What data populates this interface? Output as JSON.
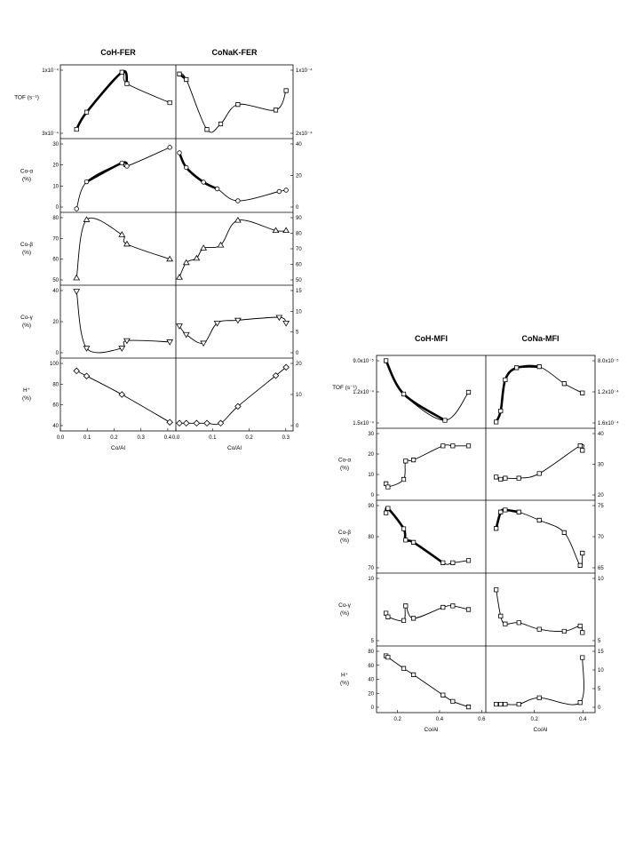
{
  "figures": [
    {
      "id": "fer",
      "x_label": "Co/Al",
      "panels": [
        {
          "title": "CoH-FER",
          "x_ticks": [
            "0.0",
            "0.1",
            "0.2",
            "0.3",
            "0.4"
          ]
        },
        {
          "title": "CoNaK-FER",
          "x_ticks": [
            "0.0",
            "0.1",
            "0.2",
            "0.3"
          ]
        }
      ],
      "rows": [
        {
          "label": [
            "TOF (s⁻¹)"
          ],
          "left_ticks": [
            "3x10⁻⁴",
            "1x10⁻⁴"
          ],
          "right_ticks": [
            "2x10⁻⁴",
            "1x10⁻⁴"
          ]
        },
        {
          "label": [
            "Co-α",
            "(%)"
          ],
          "left_ticks": [
            "0",
            "10",
            "20",
            "30"
          ],
          "right_ticks": [
            "0",
            "20",
            "40"
          ]
        },
        {
          "label": [
            "Co-β",
            "(%)"
          ],
          "left_ticks": [
            "50",
            "60",
            "70",
            "80"
          ],
          "right_ticks": [
            "50",
            "60",
            "70",
            "80",
            "90"
          ]
        },
        {
          "label": [
            "Co-γ",
            "(%)"
          ],
          "left_ticks": [
            "0",
            "20",
            "40"
          ],
          "right_ticks": [
            "0",
            "5",
            "10",
            "15"
          ]
        },
        {
          "label": [
            "H⁺",
            "(%)"
          ],
          "left_ticks": [
            "40",
            "60",
            "80",
            "100"
          ],
          "right_ticks": [
            "0",
            "10",
            "20"
          ]
        }
      ]
    },
    {
      "id": "mfi",
      "x_label": "Co/Al",
      "panels": [
        {
          "title": "CoH-MFI",
          "x_ticks": [
            "0.2",
            "0.4",
            "0.6"
          ]
        },
        {
          "title": "CoNa-MFI",
          "x_ticks": [
            "0.2",
            "0.4"
          ]
        }
      ],
      "rows": [
        {
          "label": [
            "TOF (s⁻¹)"
          ],
          "left_ticks": [
            "1.5x10⁻⁴",
            "1.2x10⁻⁴",
            "9.0x10⁻⁵"
          ],
          "right_ticks": [
            "1.6x10⁻⁴",
            "1.2x10⁻⁴",
            "8.0x10⁻⁵"
          ]
        },
        {
          "label": [
            "Co-α",
            "(%)"
          ],
          "left_ticks": [
            "0",
            "10",
            "20",
            "30"
          ],
          "right_ticks": [
            "20",
            "30",
            "40"
          ]
        },
        {
          "label": [
            "Co-β",
            "(%)"
          ],
          "left_ticks": [
            "70",
            "80",
            "90"
          ],
          "right_ticks": [
            "65",
            "70",
            "75"
          ]
        },
        {
          "label": [
            "Co-γ",
            "(%)"
          ],
          "left_ticks": [
            "5",
            "10"
          ],
          "right_ticks": [
            "5",
            "10"
          ]
        },
        {
          "label": [
            "H⁺",
            "(%)"
          ],
          "left_ticks": [
            "0",
            "20",
            "40",
            "60",
            "80"
          ],
          "right_ticks": [
            "0",
            "5",
            "10",
            "15"
          ]
        }
      ]
    }
  ],
  "chart_data": [
    {
      "type": "scatter",
      "title": "CoH-FER",
      "xlabel": "Co/Al",
      "xlim": [
        0,
        0.43
      ],
      "series": [
        {
          "name": "TOF (s⁻¹)",
          "marker": "square",
          "ylim": [
            0,
            0.00035
          ],
          "x": [
            0.05,
            0.09,
            0.23,
            0.25,
            0.42
          ],
          "y": [
            3e-05,
            0.00012,
            0.00033,
            0.00027,
            0.00017
          ]
        },
        {
          "name": "Co-α (%)",
          "marker": "circle",
          "ylim": [
            0,
            32
          ],
          "x": [
            0.05,
            0.09,
            0.23,
            0.25,
            0.42
          ],
          "y": [
            0,
            13,
            22,
            20.5,
            29.5
          ]
        },
        {
          "name": "Co-β (%)",
          "marker": "triangle",
          "ylim": [
            48,
            83
          ],
          "x": [
            0.05,
            0.09,
            0.23,
            0.25,
            0.42
          ],
          "y": [
            50,
            81,
            73,
            68,
            60
          ]
        },
        {
          "name": "Co-γ (%)",
          "marker": "triangle-down",
          "ylim": [
            0,
            52
          ],
          "x": [
            0.05,
            0.09,
            0.23,
            0.25,
            0.42
          ],
          "y": [
            50,
            5,
            5,
            11,
            10
          ]
        },
        {
          "name": "H⁺ (%)",
          "marker": "diamond",
          "ylim": [
            38,
            102
          ],
          "x": [
            0.05,
            0.09,
            0.23,
            0.42
          ],
          "y": [
            93,
            88,
            70,
            43
          ]
        }
      ]
    },
    {
      "type": "scatter",
      "title": "CoNaK-FER",
      "xlabel": "Co/Al",
      "xlim": [
        0,
        0.32
      ],
      "series": [
        {
          "name": "TOF (s⁻¹)",
          "marker": "square",
          "ylim": [
            4e-05,
            0.00028
          ],
          "x": [
            0.0,
            0.02,
            0.08,
            0.12,
            0.17,
            0.28,
            0.31
          ],
          "y": [
            0.00026,
            0.00024,
            6e-05,
            8e-05,
            0.00015,
            0.00013,
            0.0002
          ]
        },
        {
          "name": "Co-α (%)",
          "marker": "circle",
          "ylim": [
            0,
            50
          ],
          "x": [
            0.0,
            0.02,
            0.07,
            0.11,
            0.17,
            0.29,
            0.31
          ],
          "y": [
            42,
            31,
            20,
            15,
            6,
            13,
            14
          ]
        },
        {
          "name": "Co-β (%)",
          "marker": "triangle",
          "ylim": [
            47,
            92
          ],
          "x": [
            0.0,
            0.02,
            0.05,
            0.07,
            0.12,
            0.17,
            0.28,
            0.31
          ],
          "y": [
            50,
            60,
            63,
            70,
            72,
            89,
            82,
            82
          ]
        },
        {
          "name": "Co-γ (%)",
          "marker": "triangle-down",
          "ylim": [
            -3,
            20
          ],
          "x": [
            0.0,
            0.02,
            0.07,
            0.11,
            0.17,
            0.29,
            0.31
          ],
          "y": [
            7,
            4,
            1,
            8,
            9,
            10,
            8
          ]
        },
        {
          "name": "H⁺ (%)",
          "marker": "diamond",
          "ylim": [
            -1.5,
            22
          ],
          "x": [
            0.0,
            0.02,
            0.05,
            0.08,
            0.12,
            0.17,
            0.28,
            0.31
          ],
          "y": [
            0,
            0,
            0,
            0,
            0,
            6,
            17,
            20
          ]
        }
      ]
    },
    {
      "type": "scatter",
      "title": "CoH-MFI",
      "xlabel": "Co/Al",
      "xlim": [
        0.1,
        0.62
      ],
      "series": [
        {
          "name": "TOF (s⁻¹)",
          "marker": "square",
          "ylim": [
            8.5e-05,
            0.00016
          ],
          "x": [
            0.13,
            0.22,
            0.43,
            0.55
          ],
          "y": [
            0.000158,
            0.00012,
            9e-05,
            0.000122
          ]
        },
        {
          "name": "Co-α (%)",
          "marker": "square",
          "ylim": [
            0,
            30
          ],
          "x": [
            0.13,
            0.14,
            0.22,
            0.23,
            0.27,
            0.42,
            0.47,
            0.55
          ],
          "y": [
            6,
            4.5,
            8,
            16.5,
            17,
            23.5,
            23.5,
            23.5
          ]
        },
        {
          "name": "Co-β (%)",
          "marker": "square",
          "ylim": [
            68,
            97
          ],
          "x": [
            0.13,
            0.14,
            0.22,
            0.23,
            0.27,
            0.42,
            0.47,
            0.55
          ],
          "y": [
            93,
            95,
            86,
            81,
            80,
            71,
            71,
            72
          ]
        },
        {
          "name": "Co-γ (%)",
          "marker": "square",
          "ylim": [
            1,
            10
          ],
          "x": [
            0.13,
            0.14,
            0.22,
            0.23,
            0.27,
            0.42,
            0.47,
            0.55
          ],
          "y": [
            5,
            4.5,
            4,
            6,
            4.3,
            5.8,
            6,
            5.5
          ]
        },
        {
          "name": "H⁺ (%)",
          "marker": "square",
          "ylim": [
            -3,
            82
          ],
          "x": [
            0.13,
            0.14,
            0.22,
            0.27,
            0.42,
            0.47,
            0.55
          ],
          "y": [
            73,
            71,
            55,
            46,
            17,
            8,
            0
          ]
        }
      ]
    },
    {
      "type": "scatter",
      "title": "CoNa-MFI",
      "xlabel": "Co/Al",
      "xlim": [
        0.0,
        0.45
      ],
      "series": [
        {
          "name": "TOF (s⁻¹)",
          "marker": "square",
          "ylim": [
            7e-05,
            0.00019
          ],
          "x": [
            0.03,
            0.05,
            0.07,
            0.12,
            0.22,
            0.33,
            0.41
          ],
          "y": [
            7.5e-05,
            9.5e-05,
            0.000152,
            0.000174,
            0.000176,
            0.000145,
            0.000128
          ]
        },
        {
          "name": "Co-α (%)",
          "marker": "square",
          "ylim": [
            12,
            40
          ],
          "x": [
            0.03,
            0.05,
            0.07,
            0.13,
            0.22,
            0.4,
            0.41
          ],
          "y": [
            20.5,
            19.5,
            20,
            20,
            22,
            34,
            32
          ]
        },
        {
          "name": "Co-β (%)",
          "marker": "square",
          "ylim": [
            62,
            78
          ],
          "x": [
            0.03,
            0.05,
            0.07,
            0.13,
            0.22,
            0.33,
            0.4,
            0.41
          ],
          "y": [
            72,
            76,
            76.5,
            76,
            74,
            71,
            63,
            66
          ]
        },
        {
          "name": "Co-γ (%)",
          "marker": "square",
          "ylim": [
            2,
            12
          ],
          "x": [
            0.03,
            0.05,
            0.07,
            0.13,
            0.22,
            0.33,
            0.4,
            0.41
          ],
          "y": [
            10,
            6,
            4.8,
            5,
            4,
            3.7,
            4.5,
            3.5
          ]
        },
        {
          "name": "H⁺ (%)",
          "marker": "square",
          "ylim": [
            -1.5,
            17
          ],
          "x": [
            0.03,
            0.05,
            0.07,
            0.13,
            0.22,
            0.4,
            0.41
          ],
          "y": [
            0,
            0,
            0,
            0,
            2,
            0.5,
            14.5
          ]
        }
      ]
    }
  ]
}
